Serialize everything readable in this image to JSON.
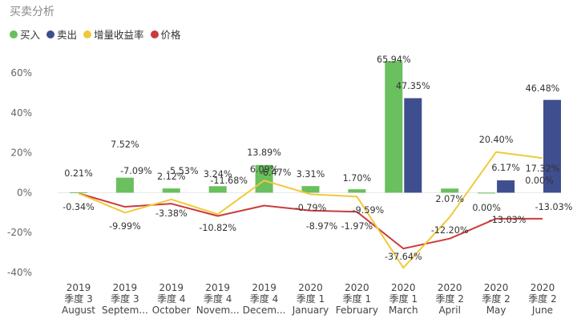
{
  "title": "买卖分析",
  "legend": [
    {
      "label": "买入",
      "color": "#6abf5e"
    },
    {
      "label": "卖出",
      "color": "#3f4e8e"
    },
    {
      "label": "增量收益率",
      "color": "#f0c93a"
    },
    {
      "label": "价格",
      "color": "#cc3b3b"
    }
  ],
  "chart_data": {
    "type": "bar",
    "categories": [
      [
        "2019",
        "季度 3",
        "August"
      ],
      [
        "2019",
        "季度 3",
        "Septem..."
      ],
      [
        "2019",
        "季度 4",
        "October"
      ],
      [
        "2019",
        "季度 4",
        "Novem..."
      ],
      [
        "2019",
        "季度 4",
        "Decem..."
      ],
      [
        "2020",
        "季度 1",
        "January"
      ],
      [
        "2020",
        "季度 1",
        "February"
      ],
      [
        "2020",
        "季度 1",
        "March"
      ],
      [
        "2020",
        "季度 2",
        "April"
      ],
      [
        "2020",
        "季度 2",
        "May"
      ],
      [
        "2020",
        "季度 2",
        "June"
      ]
    ],
    "ylim": [
      -40,
      70
    ],
    "yticks": [
      -40,
      -20,
      0,
      20,
      40,
      60
    ],
    "ytick_labels": [
      "-40%",
      "-20%",
      "0%",
      "20%",
      "40%",
      "60%"
    ],
    "series": [
      {
        "name": "买入",
        "type": "bar",
        "color": "#6abf5e",
        "values": [
          0.21,
          7.52,
          2.12,
          3.24,
          13.89,
          3.31,
          1.7,
          65.94,
          2.07,
          0.0,
          null
        ],
        "labels": [
          "0.21%",
          "7.52%",
          "2.12%",
          "3.24%",
          "13.89%",
          "3.31%",
          "1.70%",
          "65.94%",
          "2.07%",
          "0.00%",
          ""
        ]
      },
      {
        "name": "卖出",
        "type": "bar",
        "color": "#3f4e8e",
        "values": [
          null,
          null,
          null,
          null,
          null,
          null,
          null,
          47.35,
          null,
          6.17,
          46.48
        ],
        "labels": [
          "",
          "",
          "",
          "",
          "",
          "",
          "",
          "47.35%",
          "",
          "6.17%",
          "46.48%"
        ]
      },
      {
        "name": "增量收益率",
        "type": "line",
        "color": "#f0c93a",
        "values": [
          -0.34,
          -9.99,
          -3.38,
          -10.82,
          6.09,
          -0.79,
          -1.97,
          -37.64,
          -12.2,
          20.4,
          17.32
        ],
        "labels": [
          "-0.34%",
          "-9.99%",
          "-3.38%",
          "-10.82%",
          "6.09%",
          "-0.79%",
          "-1.97%",
          "-37.64%",
          "-12.20%",
          "20.40%",
          "17.32%"
        ]
      },
      {
        "name": "价格",
        "type": "line",
        "color": "#cc3b3b",
        "values": [
          -0.34,
          -7.09,
          -5.53,
          -11.68,
          -6.47,
          -8.97,
          -9.59,
          -28.0,
          -23.0,
          -13.03,
          -13.03
        ],
        "labels": [
          "",
          "-7.09%",
          "-5.53%",
          "-11.68%",
          "-6.47%",
          "-8.97%",
          "-9.59%",
          "",
          "",
          "-13.03%",
          "-13.03%"
        ]
      }
    ],
    "extra_labels": [
      "0.00%"
    ]
  }
}
